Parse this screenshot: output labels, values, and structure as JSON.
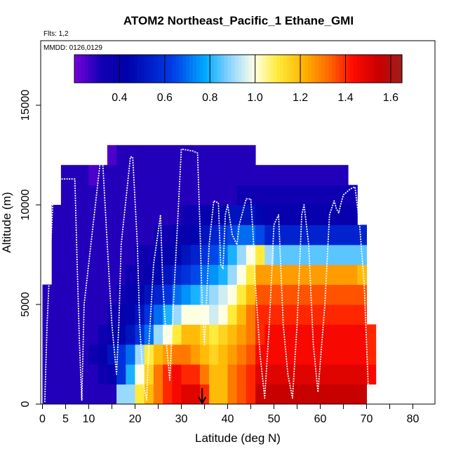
{
  "chart_data": {
    "type": "heatmap",
    "title": "ATOM2 Northeast_Pacific_1 Ethane_GMI",
    "flights_label": "Flts: 1,2",
    "dates_label": "MMDD: 0126,0129",
    "xlabel": "Latitude (deg N)",
    "ylabel": "Altitude (m)",
    "xlim": [
      0,
      85
    ],
    "ylim": [
      0,
      17500
    ],
    "x_ticks": [
      0,
      5,
      10,
      20,
      30,
      40,
      50,
      60,
      70,
      80
    ],
    "x_minor_ticks": [
      15,
      25,
      35,
      45,
      55,
      65,
      75,
      85
    ],
    "y_ticks": [
      0,
      5000,
      10000,
      15000
    ],
    "colorbar": {
      "range": [
        0.2,
        1.65
      ],
      "tick_values": [
        0.4,
        0.6,
        0.8,
        1.0,
        1.2,
        1.4,
        1.6
      ],
      "tick_labels": [
        "0.4",
        "0.6",
        "0.8",
        "1.0",
        "1.2",
        "1.4",
        "1.6"
      ]
    },
    "value_grid": {
      "lat_edges": [
        0,
        2,
        4,
        6,
        8,
        10,
        12,
        14,
        16,
        18,
        20,
        22,
        24,
        26,
        28,
        30,
        32,
        34,
        36,
        38,
        40,
        42,
        44,
        46,
        48,
        50,
        52,
        54,
        56,
        58,
        60,
        62,
        64,
        66,
        68,
        70,
        72
      ],
      "alt_edges": [
        0,
        1000,
        2000,
        3000,
        4000,
        5000,
        6000,
        7000,
        8000,
        9000,
        10000,
        11000,
        12000,
        13000
      ],
      "values": [
        [
          0.3,
          0.3,
          0.3,
          0.3,
          0.3,
          0.3,
          0.3,
          0.3,
          0.9,
          0.9,
          1.1,
          1.2,
          1.3,
          1.4,
          1.45,
          1.5,
          1.5,
          1.4,
          1.2,
          1.2,
          1.3,
          1.35,
          1.4,
          1.55,
          1.55,
          1.55,
          1.55,
          1.55,
          1.55,
          1.55,
          1.55,
          1.55,
          1.55,
          1.55,
          1.55,
          null
        ],
        [
          0.3,
          0.3,
          0.3,
          0.3,
          0.3,
          0.3,
          0.35,
          0.4,
          0.6,
          0.8,
          1.0,
          1.15,
          1.3,
          1.4,
          1.45,
          1.4,
          1.4,
          1.3,
          1.2,
          1.2,
          1.3,
          1.35,
          1.4,
          1.5,
          1.5,
          1.5,
          1.5,
          1.5,
          1.5,
          1.5,
          1.5,
          1.5,
          1.5,
          1.5,
          1.5,
          1.45
        ],
        [
          0.3,
          0.3,
          0.3,
          0.3,
          0.3,
          0.35,
          0.4,
          0.5,
          0.6,
          0.7,
          0.9,
          1.1,
          1.2,
          1.25,
          1.3,
          1.3,
          1.25,
          1.2,
          1.15,
          1.2,
          1.25,
          1.3,
          1.35,
          1.45,
          1.45,
          1.45,
          1.45,
          1.45,
          1.45,
          1.45,
          1.45,
          1.45,
          1.45,
          1.45,
          1.45,
          1.4
        ],
        [
          0.3,
          0.3,
          0.3,
          0.3,
          0.3,
          0.3,
          0.35,
          0.4,
          0.45,
          0.5,
          0.6,
          0.7,
          0.9,
          1.0,
          1.1,
          1.2,
          1.2,
          1.15,
          1.1,
          1.15,
          1.2,
          1.25,
          1.3,
          1.4,
          1.45,
          1.45,
          1.45,
          1.45,
          1.45,
          1.45,
          1.45,
          1.45,
          1.45,
          1.45,
          1.45,
          1.4
        ],
        [
          0.3,
          0.3,
          0.3,
          0.3,
          0.3,
          0.3,
          0.3,
          0.35,
          0.4,
          0.45,
          0.5,
          0.6,
          0.7,
          0.8,
          0.9,
          1.0,
          1.0,
          1.0,
          0.95,
          1.0,
          1.1,
          1.2,
          1.3,
          1.4,
          1.4,
          1.4,
          1.4,
          1.4,
          1.4,
          1.4,
          1.4,
          1.4,
          1.4,
          1.4,
          1.4,
          null
        ],
        [
          0.3,
          0.3,
          0.3,
          0.3,
          0.3,
          0.3,
          0.3,
          0.3,
          0.35,
          0.4,
          0.45,
          0.5,
          0.55,
          0.6,
          0.7,
          0.75,
          0.8,
          0.85,
          0.9,
          0.95,
          1.0,
          1.1,
          1.2,
          1.35,
          1.35,
          1.35,
          1.35,
          1.35,
          1.35,
          1.35,
          1.35,
          1.35,
          1.35,
          1.35,
          1.35,
          null
        ],
        [
          null,
          0.3,
          0.3,
          0.3,
          0.3,
          0.3,
          0.3,
          0.3,
          0.3,
          0.35,
          0.35,
          0.4,
          0.45,
          0.5,
          0.55,
          0.6,
          0.65,
          0.7,
          0.75,
          0.8,
          0.9,
          1.0,
          1.1,
          1.25,
          1.25,
          1.25,
          1.25,
          1.25,
          1.25,
          1.25,
          1.25,
          1.25,
          1.25,
          1.25,
          1.2,
          null
        ],
        [
          null,
          0.3,
          0.3,
          0.3,
          0.3,
          0.3,
          0.3,
          0.3,
          0.3,
          0.3,
          0.35,
          0.35,
          0.4,
          0.4,
          0.45,
          0.5,
          0.55,
          0.6,
          0.65,
          0.7,
          0.8,
          0.9,
          1.0,
          1.1,
          0.9,
          0.85,
          0.85,
          0.85,
          0.85,
          0.85,
          0.85,
          0.85,
          0.85,
          0.85,
          0.85,
          null
        ],
        [
          null,
          0.3,
          0.3,
          0.3,
          0.3,
          0.3,
          0.3,
          0.3,
          0.3,
          0.3,
          0.3,
          0.3,
          0.35,
          0.35,
          0.4,
          0.4,
          0.45,
          0.5,
          0.55,
          0.6,
          0.65,
          0.7,
          0.7,
          0.65,
          0.55,
          0.55,
          0.55,
          0.55,
          0.55,
          0.55,
          0.55,
          0.55,
          0.55,
          0.55,
          0.55,
          null
        ],
        [
          null,
          0.3,
          0.3,
          0.3,
          0.3,
          0.3,
          0.3,
          0.3,
          0.3,
          0.3,
          0.3,
          0.3,
          0.3,
          0.3,
          0.3,
          0.35,
          0.35,
          0.4,
          0.4,
          0.45,
          0.5,
          0.5,
          0.5,
          0.45,
          0.4,
          0.4,
          0.4,
          0.4,
          0.4,
          0.4,
          0.4,
          0.4,
          0.4,
          0.4,
          null,
          null
        ],
        [
          null,
          null,
          0.3,
          0.3,
          0.3,
          0.3,
          0.3,
          0.3,
          0.3,
          0.3,
          0.3,
          0.3,
          0.3,
          0.3,
          0.3,
          0.3,
          0.3,
          0.3,
          0.3,
          0.3,
          0.3,
          0.35,
          0.35,
          0.35,
          0.35,
          0.35,
          0.35,
          0.35,
          0.35,
          0.35,
          0.35,
          0.35,
          0.35,
          0.35,
          null,
          null
        ],
        [
          null,
          null,
          0.3,
          0.3,
          0.3,
          0.25,
          0.3,
          0.3,
          0.3,
          0.3,
          0.3,
          0.3,
          0.3,
          0.3,
          0.3,
          0.3,
          0.3,
          0.3,
          0.3,
          0.3,
          0.3,
          0.3,
          0.3,
          0.3,
          0.3,
          0.3,
          0.3,
          0.3,
          0.3,
          0.3,
          0.3,
          0.3,
          0.3,
          null,
          null,
          null
        ],
        [
          null,
          null,
          null,
          null,
          null,
          null,
          null,
          0.25,
          0.3,
          0.3,
          0.3,
          0.3,
          0.3,
          0.3,
          0.3,
          0.3,
          0.3,
          0.3,
          0.3,
          0.3,
          0.3,
          0.3,
          0.3,
          null,
          null,
          null,
          null,
          null,
          null,
          null,
          null,
          null,
          null,
          null,
          null,
          null
        ]
      ]
    },
    "flight_track": {
      "lat": [
        0.5,
        1.0,
        1.8,
        2.5,
        4.0,
        6.0,
        7.0,
        7.5,
        8.0,
        8.5,
        9.0,
        12.5,
        13.0,
        14.0,
        15.0,
        16.0,
        16.5,
        17.0,
        19.0,
        19.5,
        20.5,
        21.0,
        21.8,
        22.5,
        23.0,
        24.0,
        25.5,
        26.0,
        26.8,
        27.5,
        28.5,
        30.0,
        32.5,
        33.5,
        34.0,
        34.5,
        35.0,
        36.0,
        37.0,
        38.0,
        38.5,
        39.0,
        39.5,
        40.0,
        41.0,
        42.0,
        42.5,
        44.0,
        45.0,
        45.5,
        46.0,
        47.0,
        48.0,
        49.0,
        50.0,
        51.0,
        52.0,
        53.0,
        54.0,
        55.0,
        56.0,
        56.5,
        57.5,
        58.5,
        59.5,
        61.0,
        62.0,
        63.0,
        63.5,
        64.0,
        64.5,
        65.0,
        66.5,
        67.5,
        68.5,
        69.5,
        70.0,
        70.5
      ],
      "alt": [
        100,
        4000,
        8000,
        11300,
        11300,
        11300,
        11300,
        7000,
        3000,
        200,
        5000,
        12200,
        12200,
        8000,
        4000,
        1500,
        4000,
        8000,
        12400,
        12400,
        8000,
        4000,
        1000,
        200,
        3000,
        7000,
        9500,
        6000,
        3000,
        1200,
        6000,
        12800,
        12700,
        12600,
        9000,
        5000,
        3000,
        8000,
        10200,
        10100,
        7000,
        6800,
        9500,
        10000,
        8500,
        8000,
        9000,
        10300,
        10300,
        8500,
        6000,
        2500,
        300,
        4000,
        9000,
        9500,
        4000,
        1500,
        300,
        4000,
        9500,
        10000,
        8000,
        3000,
        600,
        5000,
        9500,
        10200,
        9800,
        9600,
        10100,
        10500,
        10800,
        10900,
        9000,
        6000,
        3000,
        100
      ]
    },
    "arrow": {
      "lat": 34.5,
      "alt_top": 800,
      "alt_bottom": 0
    }
  }
}
